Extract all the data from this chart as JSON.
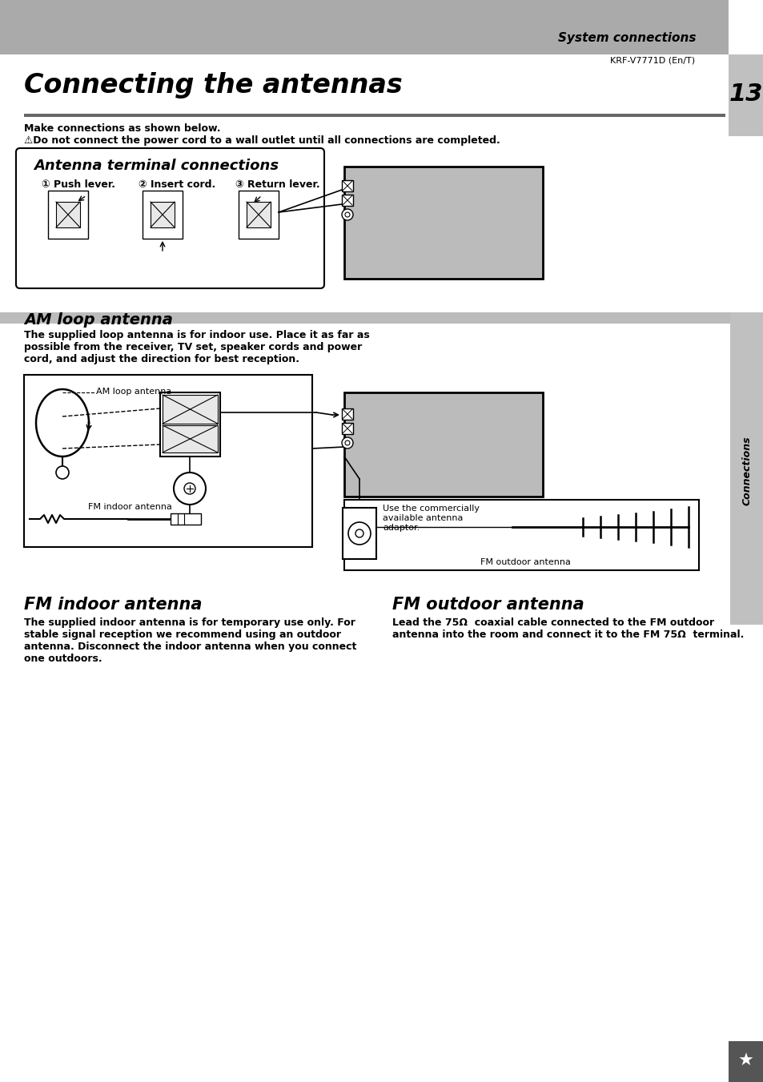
{
  "page_bg": "#ffffff",
  "header_bg": "#aaaaaa",
  "header_text": "System connections",
  "header_subtext": "KRF-V7771D (En/T)",
  "page_number": "13",
  "page_number_bg": "#c0c0c0",
  "title": "Connecting the antennas",
  "title_underline_color": "#666666",
  "make_connections": "Make connections as shown below.",
  "warning_text": "⚠Do not connect the power cord to a wall outlet until all connections are completed.",
  "antenna_terminal_box_title": "Antenna terminal connections",
  "step1_label": "① Push lever.",
  "step2_label": "② Insert cord.",
  "step3_label": "③ Return lever.",
  "am_loop_section_bg": "#bbbbbb",
  "am_loop_title": "AM loop antenna",
  "am_loop_text1": "The supplied loop antenna is for indoor use. Place it as far as",
  "am_loop_text2": "possible from the receiver, TV set, speaker cords and power",
  "am_loop_text3": "cord, and adjust the direction for best reception.",
  "am_loop_label": "AM loop antenna",
  "fm_indoor_label": "FM indoor antenna",
  "fm_outdoor_label": "FM outdoor antenna",
  "use_adaptor_line1": "Use the commercially",
  "use_adaptor_line2": "available antenna",
  "use_adaptor_line3": "adaptor.",
  "fm_indoor_title": "FM indoor antenna",
  "fm_indoor_line1": "The supplied indoor antenna is for temporary use only. For",
  "fm_indoor_line2": "stable signal reception we recommend using an outdoor",
  "fm_indoor_line3": "antenna. Disconnect the indoor antenna when you connect",
  "fm_indoor_line4": "one outdoors.",
  "fm_outdoor_title": "FM outdoor antenna",
  "fm_outdoor_line1": "Lead the 75Ω  coaxial cable connected to the FM outdoor",
  "fm_outdoor_line2": "antenna into the room and connect it to the FM 75Ω  terminal.",
  "connections_sidebar_bg": "#c0c0c0",
  "connections_sidebar_text": "Connections",
  "receiver_box_bg": "#bbbbbb",
  "star_icon_bg": "#555555"
}
